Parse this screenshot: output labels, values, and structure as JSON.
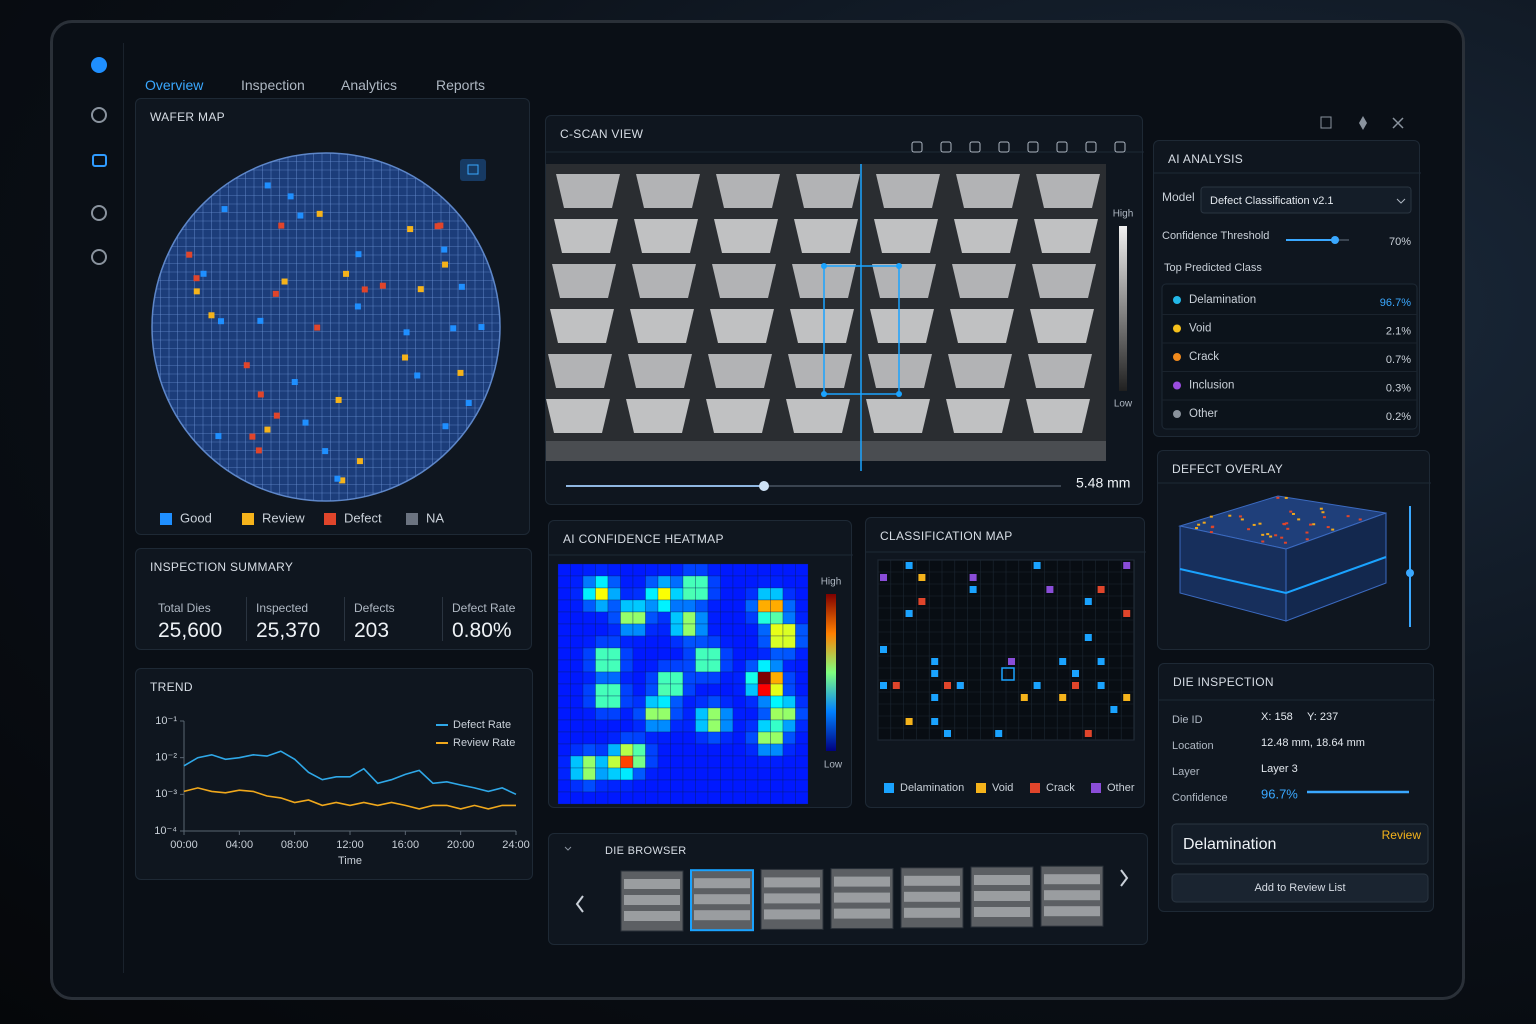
{
  "nav": {
    "tabs": [
      "Overview",
      "Inspection",
      "Analytics",
      "Reports"
    ]
  },
  "wafer_map": {
    "title": "WAFER MAP",
    "legend": [
      {
        "label": "Good",
        "color": "#1f8fff"
      },
      {
        "label": "Review",
        "color": "#f5b31b"
      },
      {
        "label": "Defect",
        "color": "#e0452b"
      },
      {
        "label": "NA",
        "color": "#6b7380"
      }
    ]
  },
  "c_scan": {
    "title": "C-SCAN VIEW",
    "scale_high": "High",
    "scale_low": "Low",
    "depth": "5.48 mm"
  },
  "ai_analysis": {
    "title": "AI ANALYSIS",
    "model_label": "Model",
    "model": "Defect Classification v2.1",
    "threshold_label": "Confidence Threshold",
    "threshold": "70%",
    "top_class_label": "Top Predicted Class",
    "classes": [
      {
        "name": "Delamination",
        "value": "96.7%",
        "color": "#22b8e8"
      },
      {
        "name": "Void",
        "value": "2.1%",
        "color": "#f5c01b"
      },
      {
        "name": "Crack",
        "value": "0.7%",
        "color": "#f08a1c"
      },
      {
        "name": "Inclusion",
        "value": "0.3%",
        "color": "#9b4de0"
      },
      {
        "name": "Other",
        "value": "0.2%",
        "color": "#8a929c"
      }
    ]
  },
  "inspection_summary": {
    "title": "INSPECTION SUMMARY",
    "stats": [
      {
        "label": "Total Dies",
        "value": "25,600"
      },
      {
        "label": "Inspected",
        "value": "25,370"
      },
      {
        "label": "Defects",
        "value": "203"
      },
      {
        "label": "Defect Rate",
        "value": "0.80%"
      }
    ]
  },
  "chart_data": {
    "type": "line",
    "title": "TREND",
    "xlabel": "Time",
    "log_scale": true,
    "legend": "upper right",
    "x": [
      0,
      1,
      2,
      3,
      4,
      5,
      6,
      7,
      8,
      9,
      10,
      11,
      12,
      13,
      14,
      15,
      16,
      17,
      18,
      19,
      20,
      21,
      22,
      23,
      24
    ],
    "series": [
      {
        "name": "Defect Rate",
        "color": "#2fa8e8",
        "values": [
          0.006,
          0.01,
          0.012,
          0.009,
          0.01,
          0.012,
          0.011,
          0.015,
          0.009,
          0.004,
          0.0025,
          0.003,
          0.003,
          0.005,
          0.002,
          0.0025,
          0.0035,
          0.0045,
          0.002,
          0.0022,
          0.0018,
          0.0015,
          0.0012,
          0.0015,
          0.001
        ]
      },
      {
        "name": "Review Rate",
        "color": "#f0a81c",
        "values": [
          0.0012,
          0.0015,
          0.0012,
          0.0011,
          0.0013,
          0.0012,
          0.0009,
          0.0008,
          0.0006,
          0.0007,
          0.0005,
          0.0006,
          0.0005,
          0.0006,
          0.0005,
          0.0006,
          0.0005,
          0.0004,
          0.0005,
          0.0005,
          0.0004,
          0.0005,
          0.0004,
          0.0005,
          0.0005
        ]
      }
    ],
    "xlim": [
      0,
      24
    ],
    "xticks": [
      {
        "value": 0,
        "label": "00:00"
      },
      {
        "value": 4,
        "label": "04:00"
      },
      {
        "value": 8,
        "label": "08:00"
      },
      {
        "value": 12,
        "label": "12:00"
      },
      {
        "value": 16,
        "label": "16:00"
      },
      {
        "value": 20,
        "label": "20:00"
      },
      {
        "value": 24,
        "label": "24:00"
      }
    ],
    "ylim": [
      0.0001,
      0.1
    ],
    "yticks": [
      {
        "value": 0.1,
        "label": "10⁻¹"
      },
      {
        "value": 0.01,
        "label": "10⁻²"
      },
      {
        "value": 0.001,
        "label": "10⁻³"
      },
      {
        "value": 0.0001,
        "label": "10⁻⁴"
      }
    ]
  },
  "heatmap": {
    "title": "AI CONFIDENCE HEATMAP",
    "high": "High",
    "low": "Low"
  },
  "classification_map": {
    "title": "CLASSIFICATION MAP",
    "legend": [
      {
        "label": "Delamination",
        "color": "#1aa3ff"
      },
      {
        "label": "Void",
        "color": "#f5b31b"
      },
      {
        "label": "Crack",
        "color": "#e0452b"
      },
      {
        "label": "Other",
        "color": "#8a4dd8"
      }
    ]
  },
  "defect_overlay": {
    "title": "DEFECT OVERLAY"
  },
  "die_inspection": {
    "title": "DIE INSPECTION",
    "fields": [
      {
        "label": "Die ID",
        "values": [
          "X: 158",
          "Y: 237"
        ]
      },
      {
        "label": "Location",
        "values": [
          "12.48 mm, 18.64 mm"
        ]
      },
      {
        "label": "Layer",
        "values": [
          "Layer 3"
        ]
      },
      {
        "label": "Confidence",
        "values": [
          "96.7%"
        ]
      }
    ],
    "result": "Delamination",
    "badge": "Review",
    "button": "Add to Review List"
  },
  "die_browser": {
    "title": "DIE BROWSER"
  }
}
